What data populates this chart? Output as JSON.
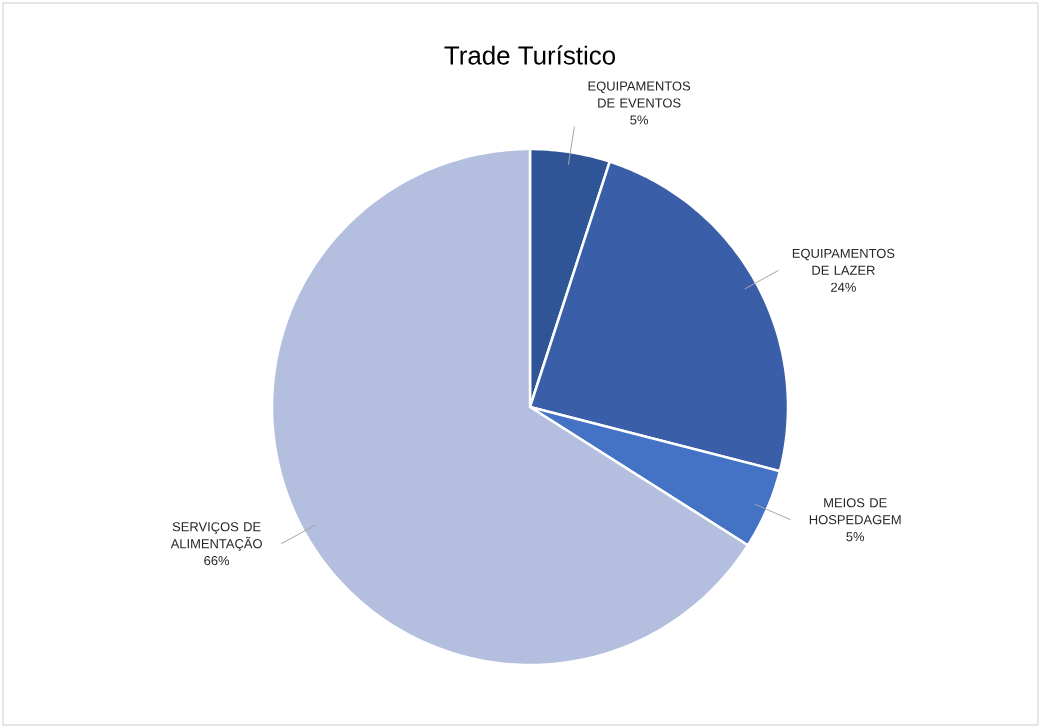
{
  "chart_data": {
    "type": "pie",
    "title": "Trade Turístico",
    "categories": [
      "EQUIPAMENTOS DE EVENTOS",
      "EQUIPAMENTOS DE LAZER",
      "MEIOS DE HOSPEDAGEM",
      "SERVIÇOS DE ALIMENTAÇÃO"
    ],
    "values": [
      5,
      24,
      5,
      66
    ],
    "colors": [
      "#2f5597",
      "#3a5fa8",
      "#4472c4",
      "#b4bfdf"
    ],
    "value_labels": [
      "5%",
      "24%",
      "5%",
      "66%"
    ]
  }
}
